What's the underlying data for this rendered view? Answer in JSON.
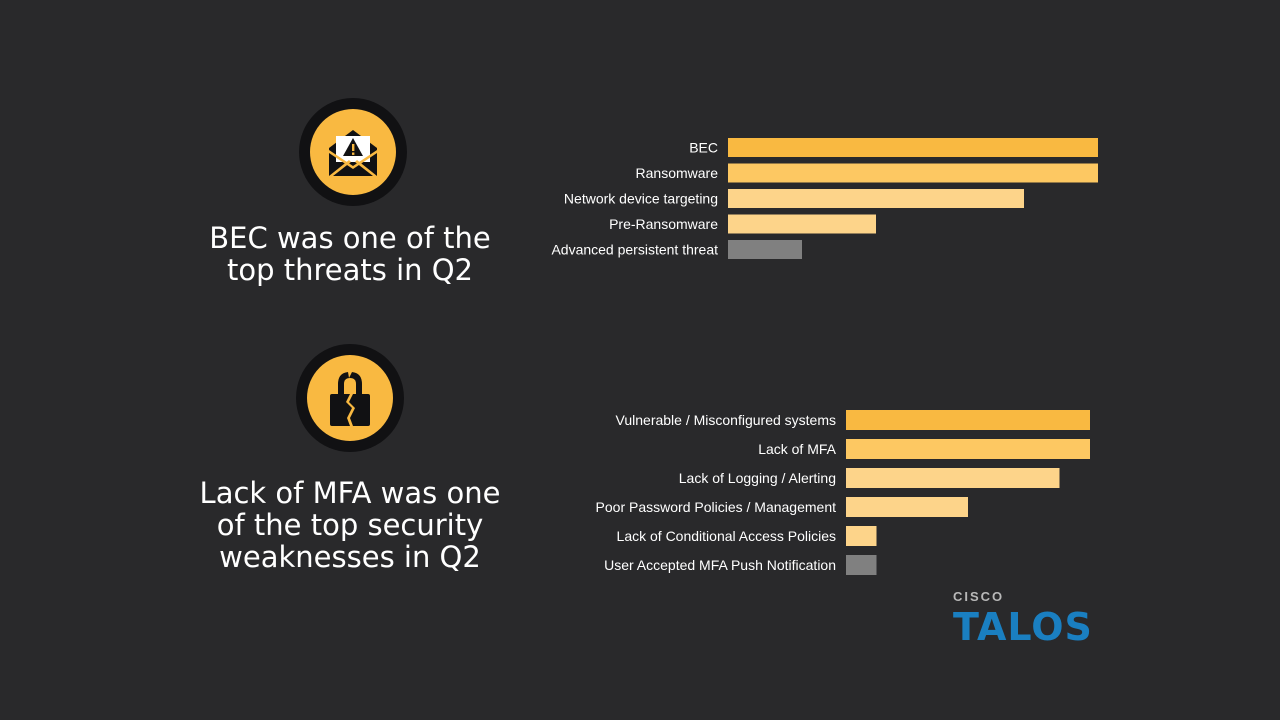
{
  "colors": {
    "background": "#29292b",
    "bar_strong": "#f9b941",
    "bar_light": "#fdd48a",
    "bar_gray": "#808080",
    "logo_blue": "#1a7fc1"
  },
  "section1": {
    "icon": "envelope-warning-icon",
    "headline": [
      "BEC was one of the",
      "top threats in Q2"
    ]
  },
  "section2": {
    "icon": "broken-lock-icon",
    "headline": [
      "Lack of MFA was one",
      "of the top security",
      "weaknesses in Q2"
    ]
  },
  "chart_data": [
    {
      "type": "bar",
      "orientation": "horizontal",
      "title": "Top threats in Q2",
      "categories": [
        "BEC",
        "Ransomware",
        "Network device targeting",
        "Pre-Ransomware",
        "Advanced persistent threat"
      ],
      "values": [
        100,
        100,
        80,
        40,
        20
      ],
      "bar_colors": [
        "#f9b941",
        "#fdc862",
        "#fdd48a",
        "#fdd48a",
        "#808080"
      ],
      "xlim": [
        0,
        100
      ],
      "axis_labels_shown": false
    },
    {
      "type": "bar",
      "orientation": "horizontal",
      "title": "Top security weaknesses in Q2",
      "categories": [
        "Vulnerable / Misconfigured systems",
        "Lack of MFA",
        "Lack of Logging / Alerting",
        "Poor Password Policies / Management",
        "Lack of Conditional Access Policies",
        "User Accepted MFA Push Notification"
      ],
      "values": [
        100,
        100,
        87.5,
        50,
        12.5,
        12.5
      ],
      "bar_colors": [
        "#f9b941",
        "#fdc862",
        "#fdd48a",
        "#fdd48a",
        "#fdd48a",
        "#808080"
      ],
      "xlim": [
        0,
        100
      ],
      "axis_labels_shown": false
    }
  ],
  "logo": {
    "company": "CISCO",
    "product": "TALOS"
  }
}
